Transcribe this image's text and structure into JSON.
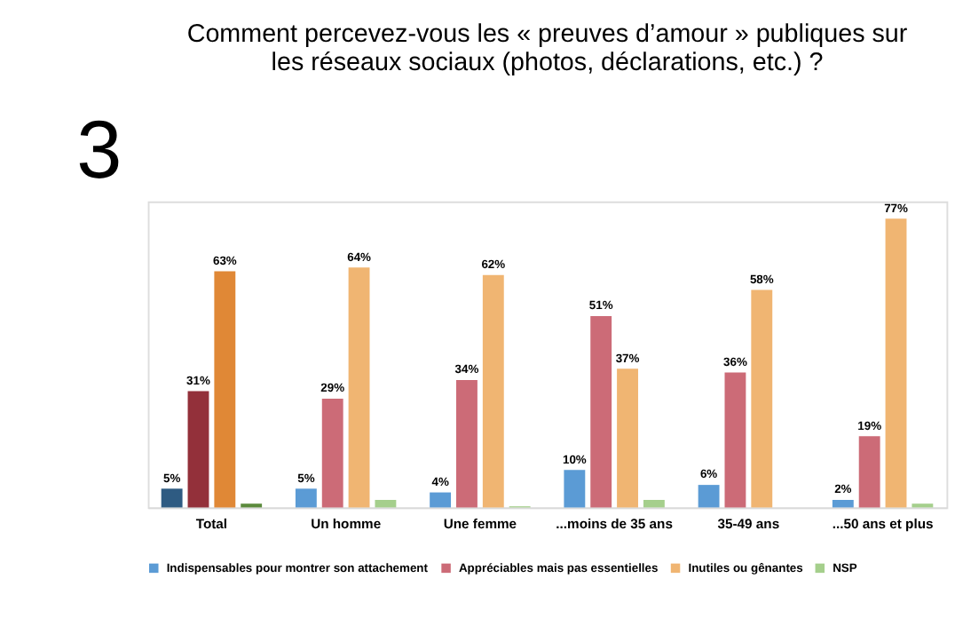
{
  "chart_data": {
    "type": "bar",
    "title": [
      "Comment percevez-vous les « preuves d’amour » publiques sur",
      "les réseaux sociaux (photos, déclarations, etc.) ?"
    ],
    "annotations": [
      "3"
    ],
    "categories": [
      "Total",
      "Un homme",
      "Une femme",
      "...moins de 35 ans",
      "35-49 ans",
      "...50 ans et plus"
    ],
    "series": [
      {
        "name": "Indispensables pour montrer son attachement",
        "color": "#5b9bd5",
        "colors": [
          "#2e5b82",
          "#5b9bd5",
          "#5b9bd5",
          "#5b9bd5",
          "#5b9bd5",
          "#5b9bd5"
        ],
        "values": [
          5,
          5,
          4,
          10,
          6,
          2
        ],
        "value_labels": [
          "5%",
          "5%",
          "4%",
          "10%",
          "6%",
          "2%"
        ]
      },
      {
        "name": "Appréciables mais pas essentielles",
        "color": "#cc6b77",
        "colors": [
          "#93303a",
          "#cc6b77",
          "#cc6b77",
          "#cc6b77",
          "#cc6b77",
          "#cc6b77"
        ],
        "values": [
          31,
          29,
          34,
          51,
          36,
          19
        ],
        "value_labels": [
          "31%",
          "29%",
          "34%",
          "51%",
          "36%",
          "19%"
        ]
      },
      {
        "name": "Inutiles ou gênantes",
        "color": "#f0b572",
        "colors": [
          "#e08836",
          "#f0b572",
          "#f0b572",
          "#f0b572",
          "#f0b572",
          "#f0b572"
        ],
        "values": [
          63,
          64,
          62,
          37,
          58,
          77
        ],
        "value_labels": [
          "63%",
          "64%",
          "62%",
          "37%",
          "58%",
          "77%"
        ]
      },
      {
        "name": "NSP",
        "color": "#a5cf8c",
        "colors": [
          "#5b8a3c",
          "#a5cf8c",
          "#a5cf8c",
          "#a5cf8c",
          "#a5cf8c",
          "#a5cf8c"
        ],
        "values": [
          1,
          2,
          0.3,
          2,
          null,
          1
        ],
        "value_labels": [
          null,
          null,
          null,
          null,
          null,
          null
        ]
      }
    ],
    "legend": "bottom"
  }
}
